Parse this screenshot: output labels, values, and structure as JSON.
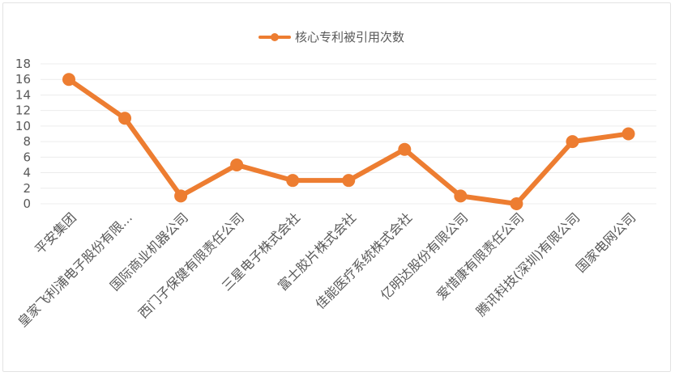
{
  "chart_data": {
    "type": "line",
    "categories": [
      "平安集团",
      "皇家飞利浦电子股份有限...",
      "国际商业机器公司",
      "西门子保健有限责任公司",
      "三星电子株式会社",
      "富士胶片株式会社",
      "佳能医疗系统株式会社",
      "亿明达股份有限公司",
      "爱惜康有限责任公司",
      "腾讯科技(深圳)有限公司",
      "国家电网公司"
    ],
    "series": [
      {
        "name": "核心专利被引用次数",
        "values": [
          16,
          11,
          1,
          5,
          3,
          3,
          7,
          1,
          0,
          8,
          9
        ]
      }
    ],
    "ylim": [
      0,
      18
    ],
    "yticks": [
      0,
      2,
      4,
      6,
      8,
      10,
      12,
      14,
      16,
      18
    ],
    "grid": true,
    "legend_position": "top",
    "colors": {
      "series": "#ED7D31",
      "grid": "#ececec",
      "text": "#595959"
    }
  }
}
